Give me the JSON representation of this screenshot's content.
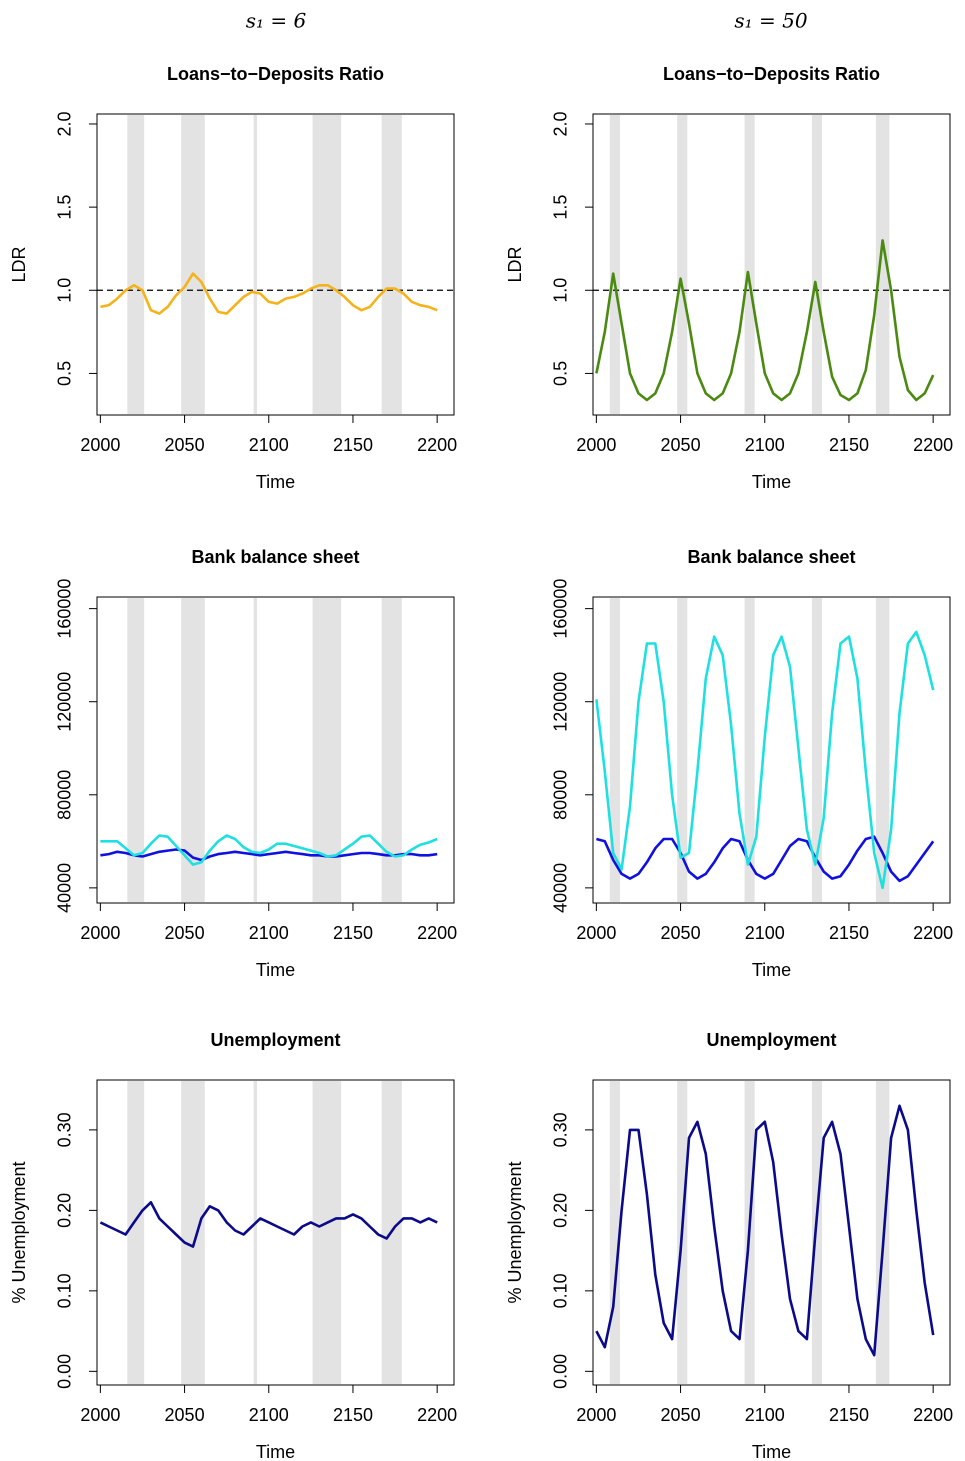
{
  "column_titles": [
    "s₁ = 6",
    "s₁ = 50"
  ],
  "chart_data": [
    {
      "type": "line",
      "title": "Loans−to−Deposits Ratio",
      "xlabel": "Time",
      "ylabel": "LDR",
      "x": [
        2000,
        2005,
        2010,
        2015,
        2020,
        2025,
        2030,
        2035,
        2040,
        2045,
        2050,
        2055,
        2060,
        2065,
        2070,
        2075,
        2080,
        2085,
        2090,
        2095,
        2100,
        2105,
        2110,
        2115,
        2120,
        2125,
        2130,
        2135,
        2140,
        2145,
        2150,
        2155,
        2160,
        2165,
        2170,
        2175,
        2180,
        2185,
        2190,
        2195,
        2200
      ],
      "series": [
        {
          "color": "#f6b21b",
          "values": [
            0.9,
            0.91,
            0.95,
            1.0,
            1.03,
            1.0,
            0.88,
            0.86,
            0.9,
            0.97,
            1.02,
            1.1,
            1.05,
            0.95,
            0.87,
            0.86,
            0.91,
            0.96,
            0.99,
            0.98,
            0.93,
            0.92,
            0.95,
            0.96,
            0.98,
            1.01,
            1.03,
            1.03,
            1.0,
            0.96,
            0.91,
            0.88,
            0.9,
            0.96,
            1.01,
            1.01,
            0.98,
            0.93,
            0.91,
            0.9,
            0.88
          ]
        }
      ],
      "shaded_regions": [
        [
          2016,
          2026
        ],
        [
          2048,
          2062
        ],
        [
          2091,
          2093
        ],
        [
          2126,
          2143
        ],
        [
          2167,
          2179
        ]
      ],
      "hline": 1,
      "xlim": [
        1998,
        2210
      ],
      "ylim": [
        0.25,
        2.06
      ],
      "xticks": [
        2000,
        2050,
        2100,
        2150,
        2200
      ],
      "yticks": [
        0.5,
        {
          "value": 1,
          "label": "1.0"
        },
        1.5,
        {
          "value": 2,
          "label": "2.0"
        }
      ]
    },
    {
      "type": "line",
      "title": "Loans−to−Deposits Ratio",
      "xlabel": "Time",
      "ylabel": "LDR",
      "x": [
        2000,
        2005,
        2010,
        2015,
        2020,
        2025,
        2030,
        2035,
        2040,
        2045,
        2050,
        2055,
        2060,
        2065,
        2070,
        2075,
        2080,
        2085,
        2090,
        2095,
        2100,
        2105,
        2110,
        2115,
        2120,
        2125,
        2130,
        2135,
        2140,
        2145,
        2150,
        2155,
        2160,
        2165,
        2170,
        2175,
        2180,
        2185,
        2190,
        2195,
        2200
      ],
      "series": [
        {
          "color": "#4a8a10",
          "values": [
            0.5,
            0.75,
            1.1,
            0.8,
            0.5,
            0.38,
            0.34,
            0.38,
            0.5,
            0.75,
            1.07,
            0.8,
            0.5,
            0.38,
            0.34,
            0.38,
            0.5,
            0.75,
            1.11,
            0.8,
            0.5,
            0.38,
            0.34,
            0.38,
            0.5,
            0.75,
            1.05,
            0.75,
            0.48,
            0.37,
            0.34,
            0.38,
            0.52,
            0.85,
            1.3,
            1.0,
            0.6,
            0.4,
            0.34,
            0.38,
            0.49
          ]
        }
      ],
      "shaded_regions": [
        [
          2008,
          2014
        ],
        [
          2048,
          2054
        ],
        [
          2088,
          2094
        ],
        [
          2128,
          2134
        ],
        [
          2166,
          2174
        ]
      ],
      "hline": 1,
      "xlim": [
        1998,
        2210
      ],
      "ylim": [
        0.25,
        2.06
      ],
      "xticks": [
        2000,
        2050,
        2100,
        2150,
        2200
      ],
      "yticks": [
        0.5,
        {
          "value": 1,
          "label": "1.0"
        },
        1.5,
        {
          "value": 2,
          "label": "2.0"
        }
      ]
    },
    {
      "type": "line",
      "title": "Bank balance sheet",
      "xlabel": "Time",
      "x": [
        2000,
        2005,
        2010,
        2015,
        2020,
        2025,
        2030,
        2035,
        2040,
        2045,
        2050,
        2055,
        2060,
        2065,
        2070,
        2075,
        2080,
        2085,
        2090,
        2095,
        2100,
        2105,
        2110,
        2115,
        2120,
        2125,
        2130,
        2135,
        2140,
        2145,
        2150,
        2155,
        2160,
        2165,
        2170,
        2175,
        2180,
        2185,
        2190,
        2195,
        2200
      ],
      "series": [
        {
          "color": "#1010e0",
          "values": [
            54000,
            54500,
            55500,
            55000,
            54000,
            53500,
            54500,
            55500,
            56000,
            56500,
            56000,
            53000,
            52000,
            53500,
            54500,
            55000,
            55500,
            55000,
            54500,
            54000,
            54500,
            55000,
            55500,
            55000,
            54500,
            54000,
            54000,
            53500,
            53500,
            54000,
            54500,
            55000,
            55000,
            54500,
            54000,
            54000,
            54500,
            54500,
            54000,
            54000,
            54500
          ]
        },
        {
          "color": "#1fe0e0",
          "values": [
            60000,
            60000,
            60000,
            57000,
            54000,
            55000,
            59000,
            62500,
            62000,
            58000,
            54000,
            50000,
            51000,
            56000,
            60000,
            62500,
            61000,
            57500,
            55500,
            55000,
            56500,
            59000,
            59000,
            58000,
            57000,
            56000,
            55000,
            53500,
            54000,
            56500,
            59000,
            62000,
            62500,
            59000,
            55500,
            53500,
            54000,
            56500,
            58500,
            59500,
            61000
          ]
        }
      ],
      "shaded_regions": [
        [
          2016,
          2026
        ],
        [
          2048,
          2062
        ],
        [
          2091,
          2093
        ],
        [
          2126,
          2143
        ],
        [
          2167,
          2179
        ]
      ],
      "xlim": [
        1998,
        2210
      ],
      "ylim": [
        33500,
        165000
      ],
      "xticks": [
        2000,
        2050,
        2100,
        2150,
        2200
      ],
      "yticks": [
        40000,
        80000,
        120000,
        160000
      ]
    },
    {
      "type": "line",
      "title": "Bank balance sheet",
      "xlabel": "Time",
      "x": [
        2000,
        2005,
        2010,
        2015,
        2020,
        2025,
        2030,
        2035,
        2040,
        2045,
        2050,
        2055,
        2060,
        2065,
        2070,
        2075,
        2080,
        2085,
        2090,
        2095,
        2100,
        2105,
        2110,
        2115,
        2120,
        2125,
        2130,
        2135,
        2140,
        2145,
        2150,
        2155,
        2160,
        2165,
        2170,
        2175,
        2180,
        2185,
        2190,
        2195,
        2200
      ],
      "series": [
        {
          "color": "#1010e0",
          "values": [
            61000,
            60000,
            52000,
            46000,
            44000,
            46000,
            51000,
            57000,
            61000,
            61000,
            55000,
            47000,
            44000,
            46000,
            51000,
            57000,
            61000,
            60000,
            52000,
            46000,
            44000,
            46000,
            52000,
            58000,
            61000,
            60000,
            53000,
            47000,
            44000,
            45000,
            50000,
            56000,
            61000,
            62000,
            55000,
            47000,
            43000,
            45000,
            50000,
            55000,
            60000
          ]
        },
        {
          "color": "#1fe0e0",
          "values": [
            121000,
            90000,
            55000,
            48000,
            75000,
            120000,
            145000,
            145000,
            120000,
            80000,
            53000,
            55000,
            90000,
            130000,
            148000,
            140000,
            110000,
            72000,
            50000,
            62000,
            105000,
            140000,
            148000,
            135000,
            100000,
            65000,
            50000,
            70000,
            115000,
            145000,
            148000,
            130000,
            90000,
            55000,
            40000,
            65000,
            115000,
            145000,
            150000,
            140000,
            125000
          ]
        }
      ],
      "shaded_regions": [
        [
          2008,
          2014
        ],
        [
          2048,
          2054
        ],
        [
          2088,
          2094
        ],
        [
          2128,
          2134
        ],
        [
          2166,
          2174
        ]
      ],
      "xlim": [
        1998,
        2210
      ],
      "ylim": [
        33500,
        165000
      ],
      "xticks": [
        2000,
        2050,
        2100,
        2150,
        2200
      ],
      "yticks": [
        40000,
        80000,
        120000,
        160000
      ]
    },
    {
      "type": "line",
      "title": "Unemployment",
      "xlabel": "Time",
      "ylabel": "% Unemployment",
      "x": [
        2000,
        2005,
        2010,
        2015,
        2020,
        2025,
        2030,
        2035,
        2040,
        2045,
        2050,
        2055,
        2060,
        2065,
        2070,
        2075,
        2080,
        2085,
        2090,
        2095,
        2100,
        2105,
        2110,
        2115,
        2120,
        2125,
        2130,
        2135,
        2140,
        2145,
        2150,
        2155,
        2160,
        2165,
        2170,
        2175,
        2180,
        2185,
        2190,
        2195,
        2200
      ],
      "series": [
        {
          "color": "#0a0a8a",
          "values": [
            0.185,
            0.18,
            0.175,
            0.17,
            0.185,
            0.2,
            0.21,
            0.19,
            0.18,
            0.17,
            0.16,
            0.155,
            0.19,
            0.205,
            0.2,
            0.185,
            0.175,
            0.17,
            0.18,
            0.19,
            0.185,
            0.18,
            0.175,
            0.17,
            0.18,
            0.185,
            0.18,
            0.185,
            0.19,
            0.19,
            0.195,
            0.19,
            0.18,
            0.17,
            0.165,
            0.18,
            0.19,
            0.19,
            0.185,
            0.19,
            0.185
          ]
        }
      ],
      "shaded_regions": [
        [
          2016,
          2026
        ],
        [
          2048,
          2062
        ],
        [
          2091,
          2093
        ],
        [
          2126,
          2143
        ],
        [
          2167,
          2179
        ]
      ],
      "xlim": [
        1998,
        2210
      ],
      "ylim": [
        -0.017,
        0.362
      ],
      "xticks": [
        2000,
        2050,
        2100,
        2150,
        2200
      ],
      "yticks": [
        {
          "value": 0,
          "label": "0.00"
        },
        {
          "value": 0.1,
          "label": "0.10"
        },
        {
          "value": 0.2,
          "label": "0.20"
        },
        {
          "value": 0.3,
          "label": "0.30"
        }
      ]
    },
    {
      "type": "line",
      "title": "Unemployment",
      "xlabel": "Time",
      "ylabel": "% Unemployment",
      "x": [
        2000,
        2005,
        2010,
        2015,
        2020,
        2025,
        2030,
        2035,
        2040,
        2045,
        2050,
        2055,
        2060,
        2065,
        2070,
        2075,
        2080,
        2085,
        2090,
        2095,
        2100,
        2105,
        2110,
        2115,
        2120,
        2125,
        2130,
        2135,
        2140,
        2145,
        2150,
        2155,
        2160,
        2165,
        2170,
        2175,
        2180,
        2185,
        2190,
        2195,
        2200
      ],
      "series": [
        {
          "color": "#0a0a8a",
          "values": [
            0.05,
            0.03,
            0.08,
            0.2,
            0.3,
            0.3,
            0.22,
            0.12,
            0.06,
            0.04,
            0.15,
            0.29,
            0.31,
            0.27,
            0.18,
            0.1,
            0.05,
            0.04,
            0.15,
            0.3,
            0.31,
            0.26,
            0.17,
            0.09,
            0.05,
            0.04,
            0.17,
            0.29,
            0.31,
            0.27,
            0.18,
            0.09,
            0.04,
            0.02,
            0.15,
            0.29,
            0.33,
            0.3,
            0.2,
            0.11,
            0.045
          ]
        }
      ],
      "shaded_regions": [
        [
          2008,
          2014
        ],
        [
          2048,
          2054
        ],
        [
          2088,
          2094
        ],
        [
          2128,
          2134
        ],
        [
          2166,
          2174
        ]
      ],
      "xlim": [
        1998,
        2210
      ],
      "ylim": [
        -0.017,
        0.362
      ],
      "xticks": [
        2000,
        2050,
        2100,
        2150,
        2200
      ],
      "yticks": [
        {
          "value": 0,
          "label": "0.00"
        },
        {
          "value": 0.1,
          "label": "0.10"
        },
        {
          "value": 0.2,
          "label": "0.20"
        },
        {
          "value": 0.3,
          "label": "0.30"
        }
      ]
    }
  ]
}
